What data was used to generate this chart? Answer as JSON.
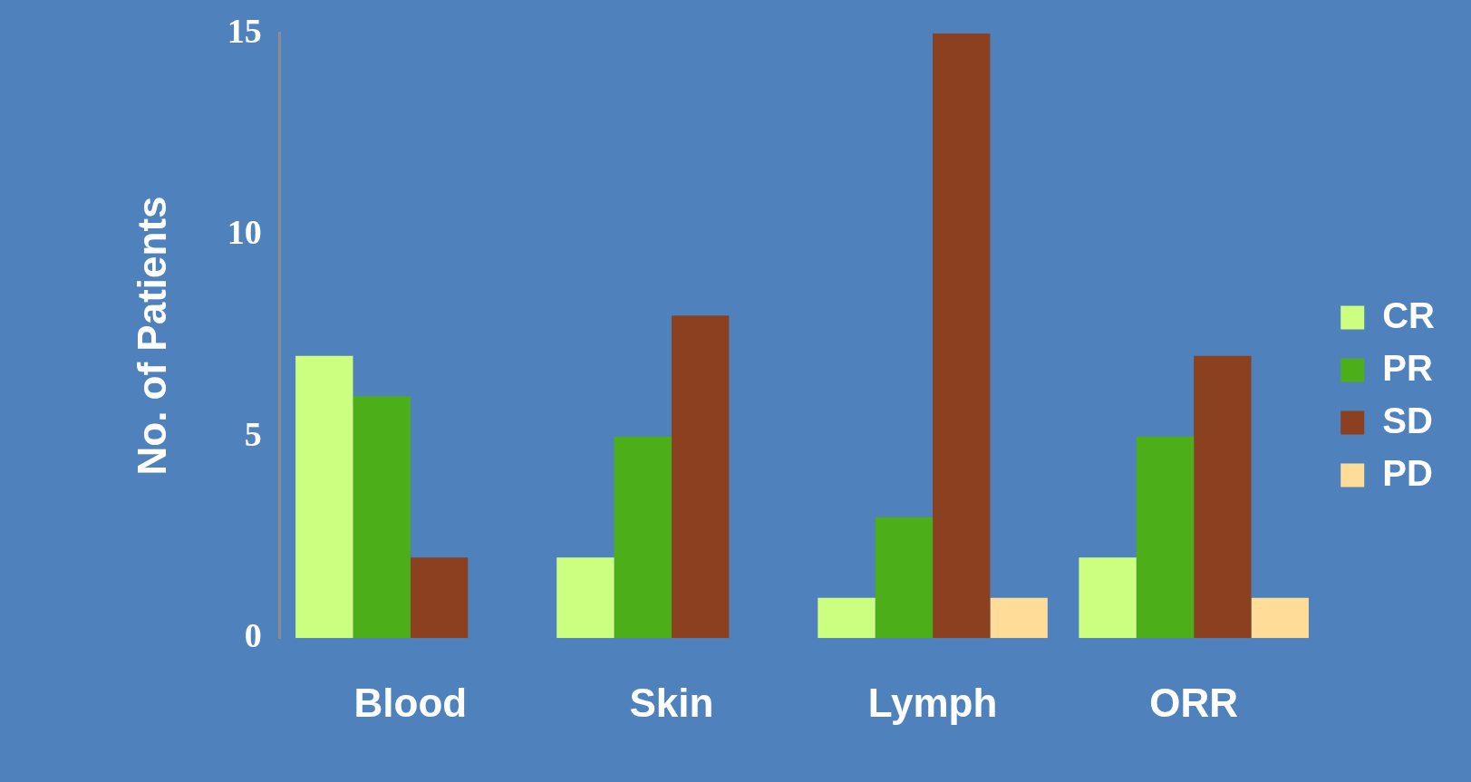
{
  "chart_data": {
    "type": "bar",
    "ylabel": "No. of Patients",
    "categories": [
      "Blood",
      "Skin",
      "Lymph",
      "ORR"
    ],
    "series": [
      {
        "name": "CR",
        "color": "#ccff80",
        "values": [
          7,
          2,
          1,
          2
        ]
      },
      {
        "name": "PR",
        "color": "#4caf1a",
        "values": [
          6,
          5,
          3,
          5
        ]
      },
      {
        "name": "SD",
        "color": "#8b4020",
        "values": [
          2,
          8,
          15,
          7
        ]
      },
      {
        "name": "PD",
        "color": "#ffdd99",
        "values": [
          null,
          null,
          1,
          1
        ]
      }
    ],
    "ylim": [
      0,
      15
    ],
    "yticks": [
      0,
      5,
      10,
      15
    ],
    "grid": false,
    "legend": "right"
  }
}
